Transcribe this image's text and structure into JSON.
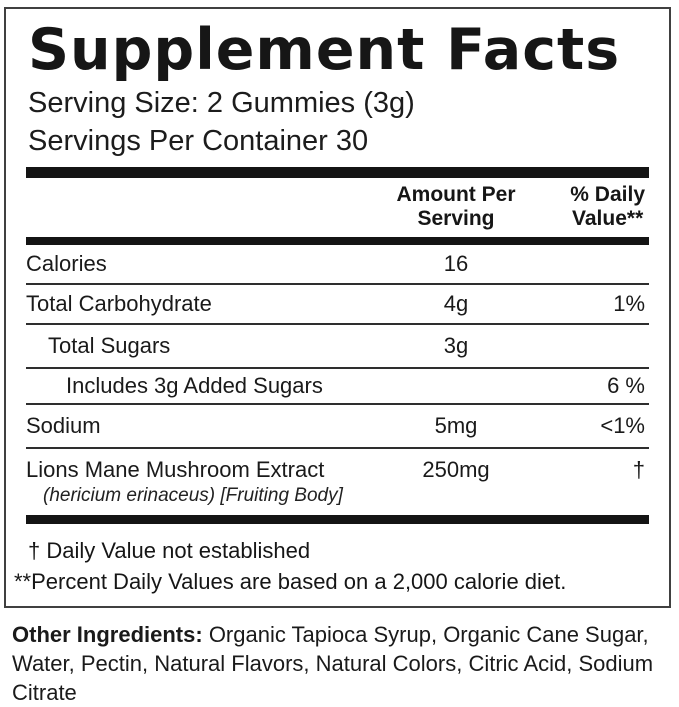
{
  "panel": {
    "title": "Supplement Facts",
    "serving_size": "Serving Size: 2 Gummies (3g)",
    "servings_per_container": "Servings Per Container 30"
  },
  "table": {
    "header": {
      "amount_line1": "Amount Per",
      "amount_line2": "Serving",
      "dv_line1": "% Daily",
      "dv_line2": "Value**"
    },
    "rows": [
      {
        "label": "Calories",
        "amount": "16",
        "dv": ""
      },
      {
        "label": "Total Carbohydrate",
        "amount": "4g",
        "dv": "1%"
      },
      {
        "label": "Total Sugars",
        "amount": "3g",
        "dv": ""
      },
      {
        "label": "Includes 3g Added Sugars",
        "amount": "",
        "dv": "6 %"
      },
      {
        "label": "Sodium",
        "amount": "5mg",
        "dv": "<1%"
      },
      {
        "label": "Lions Mane Mushroom Extract",
        "sublabel": "(hericium erinaceus) [Fruiting Body]",
        "amount": "250mg",
        "dv": "†"
      }
    ]
  },
  "footnotes": {
    "dagger": "† Daily Value not established",
    "asterisk": "**Percent Daily Values are based on a 2,000 calorie diet."
  },
  "other_ingredients": {
    "heading": "Other Ingredients:",
    "line1": "Organic Tapioca Syrup, Organic Cane Sugar,",
    "line2": "Water, Pectin, Natural Flavors, Natural Colors, Citric Acid, Sodium Citrate"
  },
  "colors": {
    "text": "#141414",
    "panel_border": "#404040",
    "thick_bar": "#141414",
    "row_separator": "#2e2e2e"
  }
}
